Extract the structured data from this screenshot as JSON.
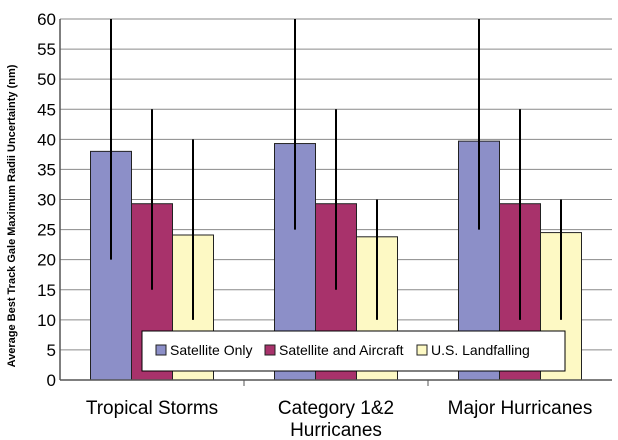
{
  "chart_data": {
    "type": "bar",
    "ylabel": "Average Best Track Gale Maximum Radii Uncertainty (nm)",
    "ylim": [
      0,
      60
    ],
    "yticks": [
      0,
      5,
      10,
      15,
      20,
      25,
      30,
      35,
      40,
      45,
      50,
      55,
      60
    ],
    "grid": true,
    "legend_position": "bottom-center",
    "categories": [
      [
        "Tropical Storms"
      ],
      [
        "Category 1&2",
        "Hurricanes"
      ],
      [
        "Major Hurricanes"
      ]
    ],
    "series": [
      {
        "name": "Satellite Only",
        "color": "#8c8fc8",
        "values": [
          38,
          39.3,
          39.7
        ],
        "error_low": [
          20,
          25,
          25
        ],
        "error_high": [
          60,
          60,
          60
        ]
      },
      {
        "name": "Satellite and Aircraft",
        "color": "#a8326b",
        "values": [
          29.3,
          29.3,
          29.3
        ],
        "error_low": [
          15,
          15,
          10
        ],
        "error_high": [
          45,
          45,
          45
        ]
      },
      {
        "name": "U.S. Landfalling",
        "color": "#fdf9c4",
        "values": [
          24.1,
          23.8,
          24.5
        ],
        "error_low": [
          10,
          10,
          10
        ],
        "error_high": [
          40,
          30,
          30
        ]
      }
    ]
  }
}
